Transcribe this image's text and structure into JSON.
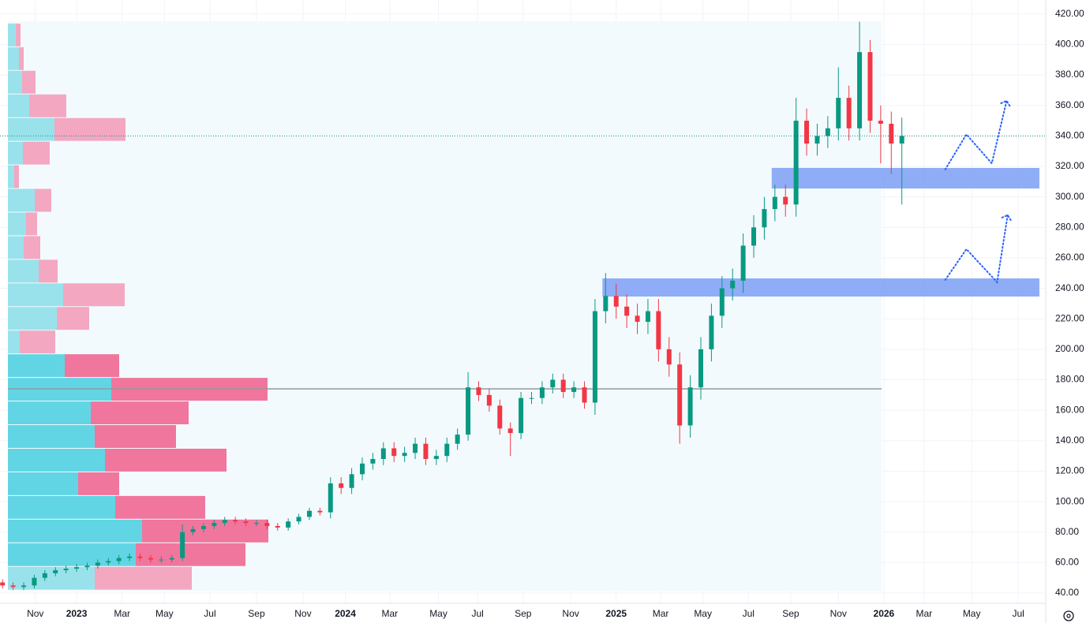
{
  "chart_data": {
    "type": "candlestick",
    "up_color": "#089981",
    "down_color": "#f23645",
    "open": [
      47,
      45,
      44,
      45,
      50,
      53,
      55,
      56,
      57,
      58,
      60,
      61,
      63,
      64,
      63,
      62,
      62,
      63,
      80,
      82,
      84,
      86,
      88,
      87,
      86,
      86,
      84,
      83,
      87,
      90,
      94,
      93,
      112,
      109,
      118,
      125,
      128,
      135,
      130,
      132,
      138,
      128,
      130,
      138,
      144,
      175,
      170,
      163,
      148,
      145,
      168,
      168,
      175,
      180,
      172,
      175,
      165,
      225,
      235,
      228,
      222,
      218,
      225,
      200,
      190,
      150,
      175,
      200,
      222,
      240,
      245,
      268,
      280,
      292,
      300,
      295,
      350,
      335,
      340,
      345,
      365,
      345,
      395,
      350,
      348,
      335
    ],
    "high": [
      49,
      47,
      47,
      52,
      55,
      57,
      58,
      59,
      60,
      62,
      63,
      65,
      66,
      66,
      65,
      64,
      65,
      85,
      84,
      86,
      88,
      90,
      90,
      89,
      88,
      88,
      86,
      89,
      92,
      96,
      96,
      116,
      116,
      122,
      129,
      132,
      139,
      139,
      136,
      142,
      142,
      134,
      142,
      148,
      185,
      179,
      174,
      167,
      152,
      172,
      172,
      179,
      184,
      184,
      179,
      179,
      233,
      250,
      243,
      236,
      230,
      233,
      233,
      208,
      198,
      183,
      208,
      230,
      248,
      253,
      276,
      288,
      300,
      308,
      308,
      365,
      358,
      348,
      353,
      385,
      373,
      415,
      403,
      360,
      356,
      352
    ],
    "low": [
      43,
      42,
      42,
      43,
      48,
      51,
      53,
      54,
      55,
      56,
      58,
      59,
      61,
      61,
      60,
      60,
      60,
      61,
      78,
      80,
      82,
      84,
      85,
      84,
      84,
      82,
      81,
      81,
      85,
      88,
      91,
      89,
      105,
      105,
      114,
      121,
      124,
      126,
      126,
      128,
      124,
      124,
      126,
      134,
      140,
      166,
      159,
      144,
      130,
      141,
      164,
      164,
      171,
      168,
      168,
      161,
      157,
      217,
      220,
      214,
      210,
      210,
      192,
      182,
      138,
      142,
      167,
      192,
      214,
      232,
      237,
      260,
      272,
      284,
      287,
      287,
      327,
      327,
      332,
      337,
      337,
      337,
      342,
      322,
      315,
      295
    ],
    "close": [
      45,
      44,
      45,
      50,
      53,
      55,
      56,
      57,
      58,
      60,
      61,
      63,
      64,
      63,
      62,
      62,
      63,
      80,
      82,
      84,
      86,
      88,
      87,
      86,
      86,
      84,
      83,
      87,
      90,
      94,
      93,
      112,
      109,
      118,
      125,
      128,
      135,
      130,
      132,
      138,
      128,
      130,
      138,
      144,
      175,
      170,
      163,
      148,
      145,
      168,
      168,
      175,
      180,
      172,
      175,
      165,
      225,
      235,
      228,
      222,
      218,
      225,
      200,
      190,
      150,
      175,
      200,
      222,
      240,
      245,
      268,
      280,
      292,
      300,
      295,
      350,
      335,
      340,
      345,
      365,
      345,
      395,
      350,
      348,
      335,
      340
    ],
    "xlim": [
      -0.24,
      98.6
    ],
    "xticks": [
      {
        "value": 3.1,
        "label": "Nov"
      },
      {
        "value": 7,
        "label": "2023"
      },
      {
        "value": 11.3,
        "label": "Mar"
      },
      {
        "value": 15.3,
        "label": "May"
      },
      {
        "value": 19.6,
        "label": "Jul"
      },
      {
        "value": 24,
        "label": "Sep"
      },
      {
        "value": 28.4,
        "label": "Nov"
      },
      {
        "value": 32.4,
        "label": "2024"
      },
      {
        "value": 36.6,
        "label": "Mar"
      },
      {
        "value": 41.2,
        "label": "May"
      },
      {
        "value": 44.9,
        "label": "Jul"
      },
      {
        "value": 49.2,
        "label": "Sep"
      },
      {
        "value": 53.7,
        "label": "Nov"
      },
      {
        "value": 58,
        "label": "2025"
      },
      {
        "value": 62.2,
        "label": "Mar"
      },
      {
        "value": 66.2,
        "label": "May"
      },
      {
        "value": 70.5,
        "label": "Jul"
      },
      {
        "value": 74.5,
        "label": "Sep"
      },
      {
        "value": 79,
        "label": "Nov"
      },
      {
        "value": 83.3,
        "label": "2026"
      },
      {
        "value": 87.1,
        "label": "Mar"
      },
      {
        "value": 91.6,
        "label": "May"
      },
      {
        "value": 96,
        "label": "Jul"
      }
    ],
    "ylim": [
      33.3,
      429.2
    ],
    "yticks": [
      {
        "value": 40,
        "label": "40.00"
      },
      {
        "value": 60,
        "label": "60.00"
      },
      {
        "value": 80,
        "label": "80.00"
      },
      {
        "value": 100,
        "label": "100.00"
      },
      {
        "value": 120,
        "label": "120.00"
      },
      {
        "value": 140,
        "label": "140.00"
      },
      {
        "value": 160,
        "label": "160.00"
      },
      {
        "value": 180,
        "label": "180.00"
      },
      {
        "value": 200,
        "label": "200.00"
      },
      {
        "value": 220,
        "label": "220.00"
      },
      {
        "value": 240,
        "label": "240.00"
      },
      {
        "value": 260,
        "label": "260.00"
      },
      {
        "value": 280,
        "label": "280.00"
      },
      {
        "value": 300,
        "label": "300.00"
      },
      {
        "value": 320,
        "label": "320.00"
      },
      {
        "value": 340,
        "label": "340.00"
      },
      {
        "value": 360,
        "label": "360.00"
      },
      {
        "value": 380,
        "label": "380.00"
      },
      {
        "value": 400,
        "label": "400.00"
      },
      {
        "value": 420,
        "label": "420.00"
      }
    ],
    "grid": true,
    "volume_profile": {
      "price_bins": [
        42,
        57.5,
        73,
        88.5,
        104,
        119.5,
        135,
        150.5,
        166,
        181.5,
        197,
        212.5,
        228,
        243.5,
        259,
        274.5,
        290,
        305.5,
        321,
        336.5,
        352,
        367.5,
        383,
        398.5,
        414
      ],
      "up": [
        110,
        162,
        170,
        136,
        89,
        123,
        110,
        105,
        131,
        72,
        15,
        62,
        70,
        39,
        20,
        23,
        34,
        8,
        19,
        59,
        27,
        18,
        14,
        10
      ],
      "down": [
        123,
        139,
        160,
        114,
        52,
        154,
        103,
        124,
        198,
        69,
        45,
        41,
        78,
        24,
        21,
        14,
        21,
        6,
        34,
        90,
        47,
        17,
        6,
        6
      ],
      "value_area_bins": [
        1,
        9
      ],
      "up_color": "#5ad3e3",
      "down_color": "#ef6f99",
      "up_color_light": "#93e0ea",
      "down_color_light": "#f2a2bd",
      "poc": 174
    },
    "last_price": 340,
    "zones": [
      {
        "low": 305.5,
        "high": 319,
        "x0": 72.7,
        "x1": 98
      },
      {
        "low": 234.6,
        "high": 246.5,
        "x0": 56.7,
        "x1": 98
      }
    ],
    "zone_color": "#7b9ff5",
    "projections": [
      {
        "x": [
          89.1,
          91.1,
          93.5,
          94.9
        ],
        "y": [
          318,
          341,
          322,
          363
        ]
      },
      {
        "x": [
          89.1,
          91.1,
          94,
          95
        ],
        "y": [
          245.5,
          265.7,
          244,
          288
        ]
      }
    ]
  }
}
